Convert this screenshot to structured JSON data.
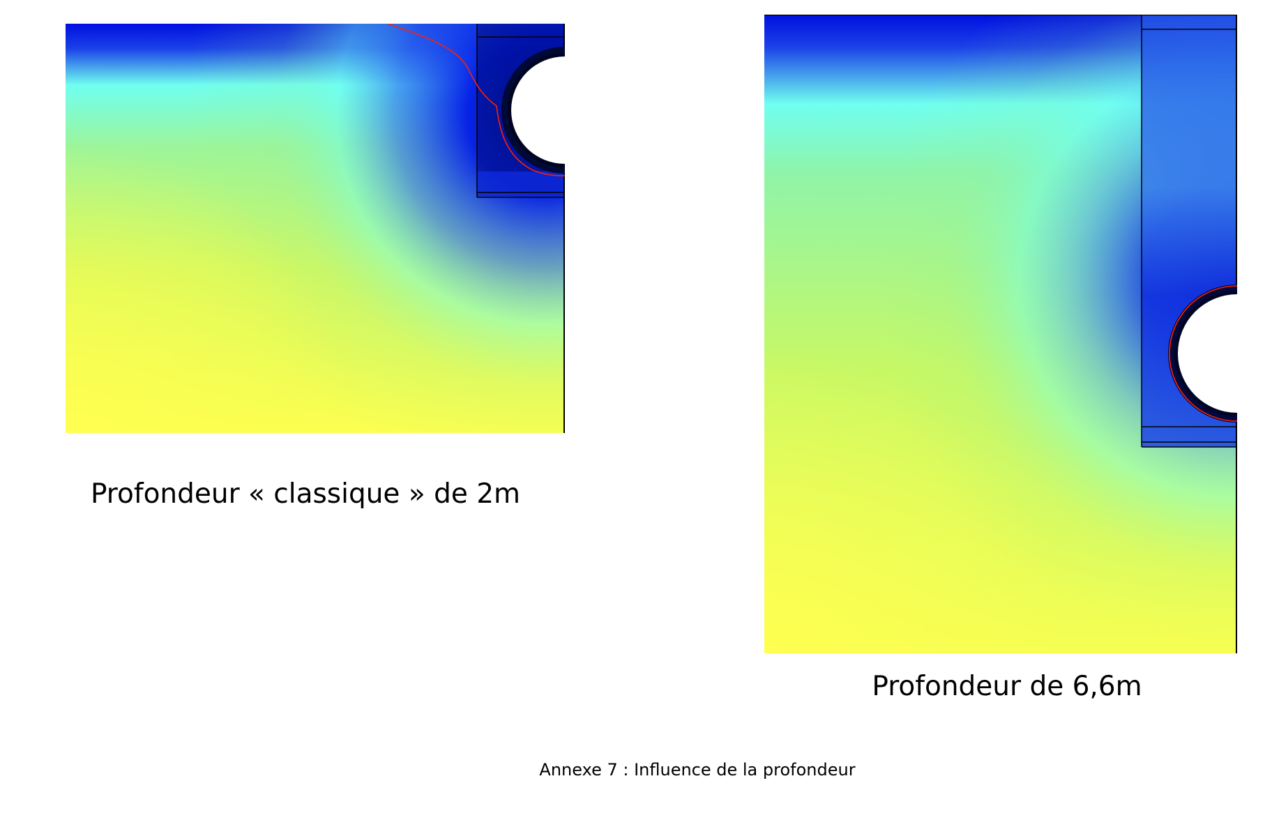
{
  "figures": [
    {
      "caption": "Profondeur « classique » de 2m"
    },
    {
      "caption": "Profondeur de 6,6m"
    }
  ],
  "annex_caption": "Annexe 7 : Influence de la profondeur",
  "colors": {
    "deep_blue": "#0010e0",
    "cyan": "#70fff0",
    "green": "#a0f080",
    "yellow": "#ffff50",
    "isoline": "#ff2000",
    "outline": "#000000"
  }
}
